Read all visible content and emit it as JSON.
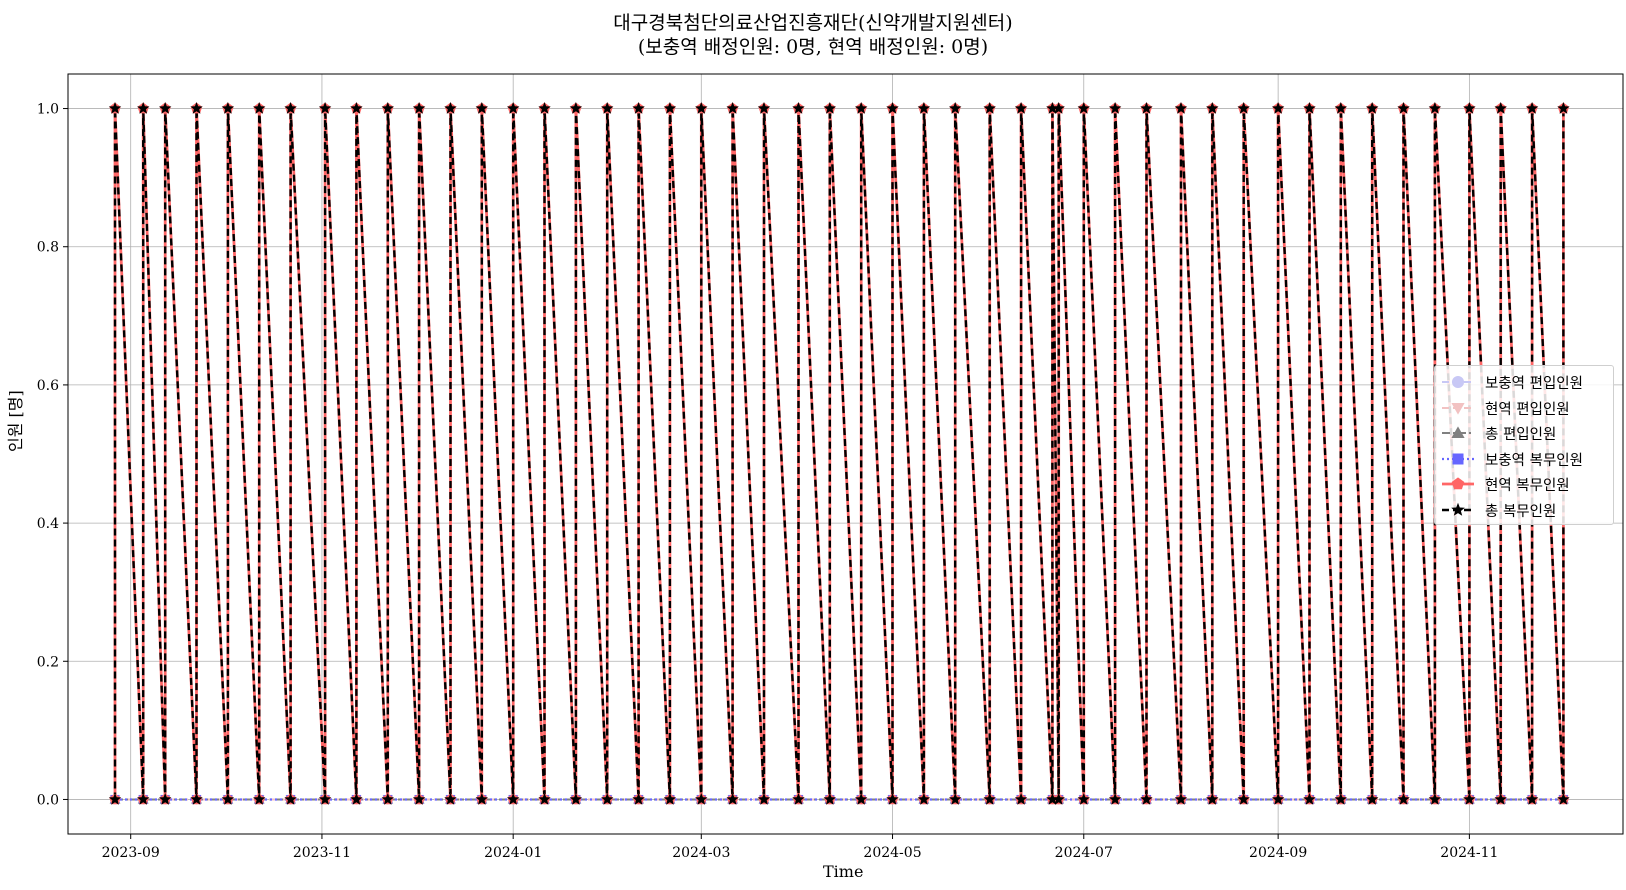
{
  "chart_data": {
    "type": "line",
    "title": "대구경북첨단의료산업진흥재단(신약개발지원센터)",
    "subtitle": "(보충역 배정인원: 0명, 현역 배정인원: 0명)",
    "xlabel": "Time",
    "ylabel": "인원 [명]",
    "x_ticks": [
      "2023-09",
      "2023-11",
      "2024-01",
      "2024-03",
      "2024-05",
      "2024-07",
      "2024-09",
      "2024-11"
    ],
    "y_ticks": [
      "0.0",
      "0.2",
      "0.4",
      "0.6",
      "0.8",
      "1.0"
    ],
    "xlim": [
      "2023-08-12",
      "2024-12-20"
    ],
    "ylim": [
      -0.05,
      1.05
    ],
    "grid": true,
    "legend_position": "center-right",
    "pulse_dates": [
      "2023-08-27",
      "2023-09-05",
      "2023-09-12",
      "2023-09-22",
      "2023-10-02",
      "2023-10-12",
      "2023-10-22",
      "2023-11-02",
      "2023-11-12",
      "2023-11-22",
      "2023-12-02",
      "2023-12-12",
      "2023-12-22",
      "2024-01-01",
      "2024-01-11",
      "2024-01-21",
      "2024-01-31",
      "2024-02-10",
      "2024-02-20",
      "2024-03-01",
      "2024-03-11",
      "2024-03-21",
      "2024-04-01",
      "2024-04-11",
      "2024-04-21",
      "2024-05-01",
      "2024-05-11",
      "2024-05-21",
      "2024-06-01",
      "2024-06-11",
      "2024-06-21",
      "2024-06-23",
      "2024-07-01",
      "2024-07-11",
      "2024-07-21",
      "2024-08-01",
      "2024-08-11",
      "2024-08-21",
      "2024-09-01",
      "2024-09-11",
      "2024-09-21",
      "2024-10-01",
      "2024-10-11",
      "2024-10-21",
      "2024-11-01",
      "2024-11-11",
      "2024-11-21",
      "2024-12-01"
    ],
    "series": [
      {
        "name": "보충역 편입인원",
        "color": "#c8c8f5",
        "style": "dashed",
        "marker": "circle",
        "values": "all 0"
      },
      {
        "name": "현역 편입인원",
        "color": "#f2c2c2",
        "style": "dashed",
        "marker": "triangle-down",
        "values": "all 0"
      },
      {
        "name": "총 편입인원",
        "color": "#808080",
        "style": "dash-dot",
        "marker": "triangle-up",
        "values": "all 0"
      },
      {
        "name": "보충역 복무인원",
        "color": "#6666ff",
        "style": "dotted",
        "marker": "square",
        "values": "all 0"
      },
      {
        "name": "현역 복무인원",
        "color": "#ff6666",
        "style": "solid",
        "marker": "pentagon",
        "values": "1 at each pulse date, 0 just before"
      },
      {
        "name": "총 복무인원",
        "color": "#000000",
        "style": "dashed",
        "marker": "star",
        "values": "1 at each pulse date, 0 just before"
      }
    ]
  }
}
